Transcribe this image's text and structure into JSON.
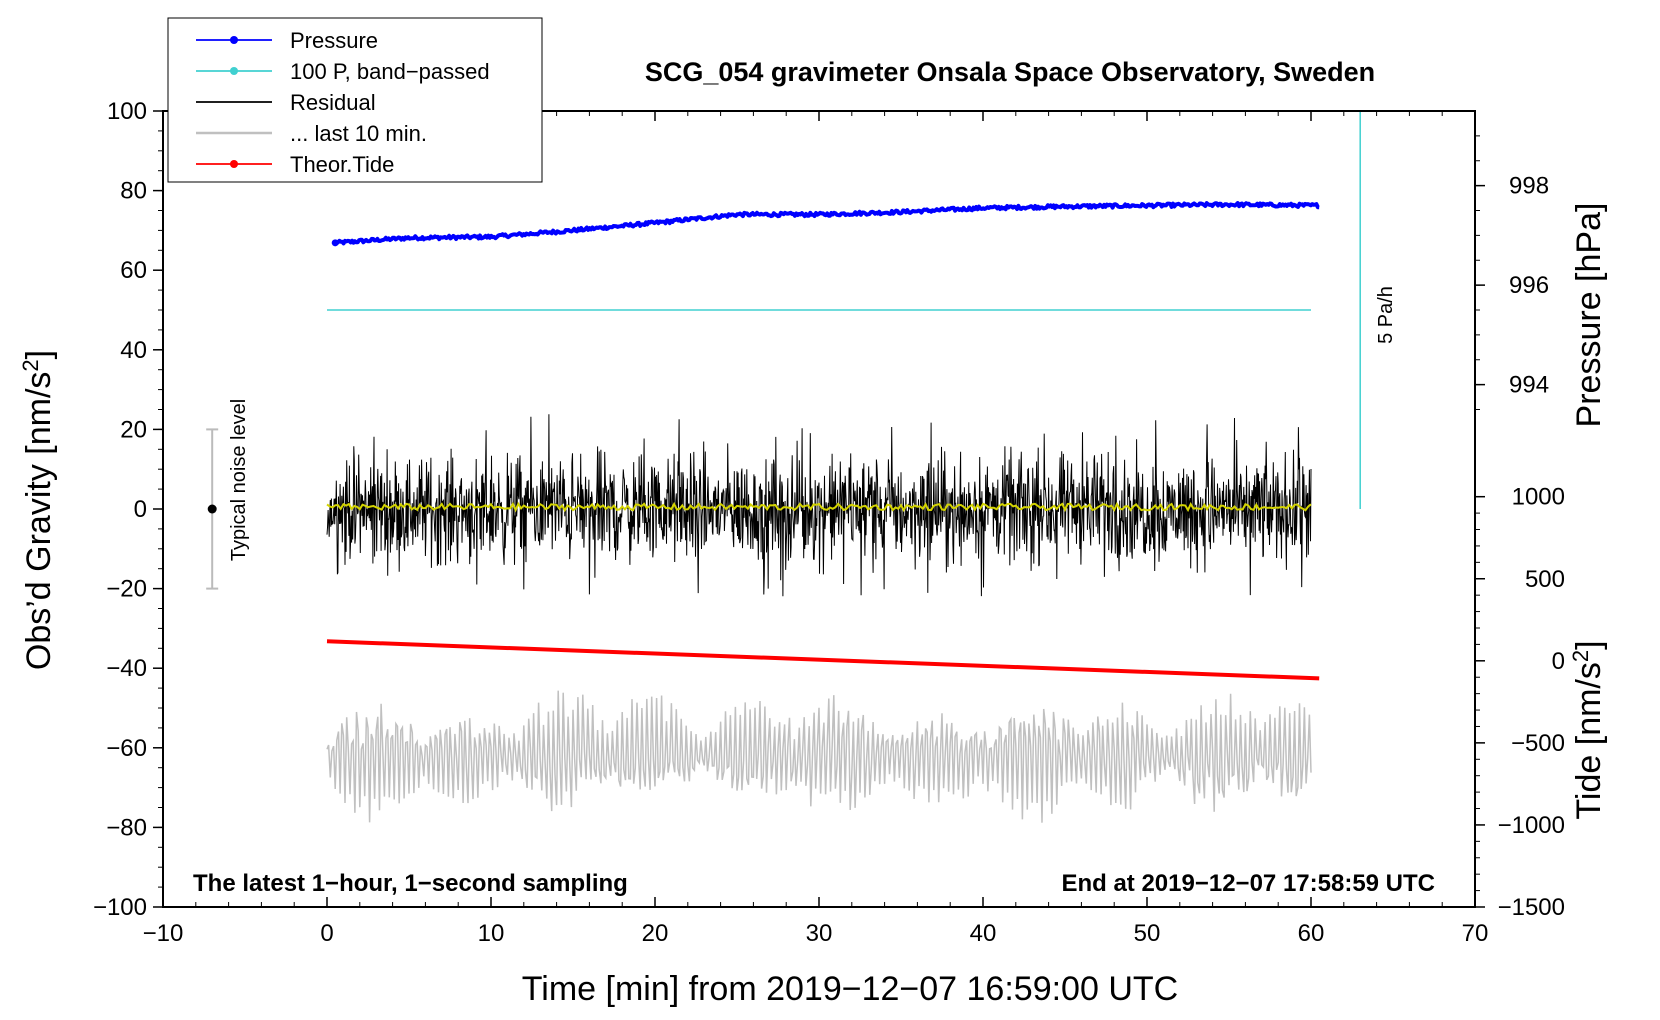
{
  "chart_data": {
    "type": "line",
    "title": "SCG_054 gravimeter Onsala Space Observatory, Sweden",
    "xlabel": "Time [min] from 2019−12−07 16:59:00 UTC",
    "ylabel_left": "Obs’d Gravity [nm/s",
    "ylabel_left_sup": "2",
    "ylabel_left_end": "]",
    "ylabel_right_pressure": "Pressure [hPa]",
    "ylabel_right_tide": "Tide [nm/s",
    "ylabel_right_tide_sup": "2",
    "ylabel_right_tide_end": "]",
    "xlim": [
      -10,
      70
    ],
    "ylim": [
      -100,
      100
    ],
    "x_ticks": [
      "−10",
      "0",
      "10",
      "20",
      "30",
      "40",
      "50",
      "60",
      "70"
    ],
    "y_ticks": [
      "−100",
      "−80",
      "−60",
      "−40",
      "−20",
      "0",
      "20",
      "40",
      "60",
      "80",
      "100"
    ],
    "pressure_ticks": [
      "994",
      "996",
      "998"
    ],
    "tide_ticks": [
      "−1500",
      "−1000",
      "−500",
      "0",
      "500",
      "1000"
    ],
    "pressure_axis": {
      "value_at_y0": 991.5,
      "value_at_y100": 999.5
    },
    "tide_axis": {
      "value_at_y_min": -1500,
      "value_at_y_max": 3350
    },
    "note_left": "The latest 1−hour, 1−second sampling",
    "note_right": "End at 2019−12−07 17:58:59 UTC",
    "noise_label": "Typical noise level",
    "noise_bar": {
      "x": -7,
      "center": 0,
      "half_range": 20
    },
    "rate_label": "5 Pa/h",
    "rate_bar": {
      "x": 63,
      "y_from": 0,
      "y_to": 100
    },
    "legend": [
      {
        "label": "Pressure",
        "color": "#0000ff",
        "marker": true
      },
      {
        "label": "100 P, band−passed",
        "color": "#40d0d0",
        "marker": true
      },
      {
        "label": "Residual",
        "color": "#000000",
        "marker": false
      },
      {
        "label": "... last 10 min.",
        "color": "#c0c0c0",
        "marker": false
      },
      {
        "label": "Theor.Tide",
        "color": "#ff0000",
        "marker": true
      }
    ],
    "series": [
      {
        "name": "Pressure",
        "color": "#0000ff",
        "axis": "pressure",
        "x": [
          0.5,
          5,
          10,
          15,
          20,
          25,
          30,
          35,
          40,
          45,
          50,
          55,
          60.5
        ],
        "values": [
          996.85,
          996.95,
          996.97,
          997.1,
          997.25,
          997.42,
          997.42,
          997.47,
          997.55,
          997.58,
          997.6,
          997.62,
          997.6
        ]
      },
      {
        "name": "100 P, band−passed",
        "color": "#40d0d0",
        "x": [
          0,
          60
        ],
        "values": [
          50,
          50
        ]
      },
      {
        "name": "Residual",
        "color": "#000000",
        "x_range": [
          0,
          60
        ],
        "amplitude_range": [
          -22,
          25
        ],
        "center": 0
      },
      {
        "name": "Residual, smoothed",
        "color": "#d4d400",
        "x_range": [
          0,
          60
        ],
        "center": 0.5
      },
      {
        "name": "... last 10 min.",
        "color": "#c0c0c0",
        "x_range": [
          0,
          60
        ],
        "center": -62,
        "amplitude_range": [
          -84,
          -37
        ]
      },
      {
        "name": "Theor.Tide",
        "color": "#ff0000",
        "axis": "tide",
        "x": [
          0,
          60.5
        ],
        "values": [
          119,
          -107
        ]
      }
    ]
  }
}
